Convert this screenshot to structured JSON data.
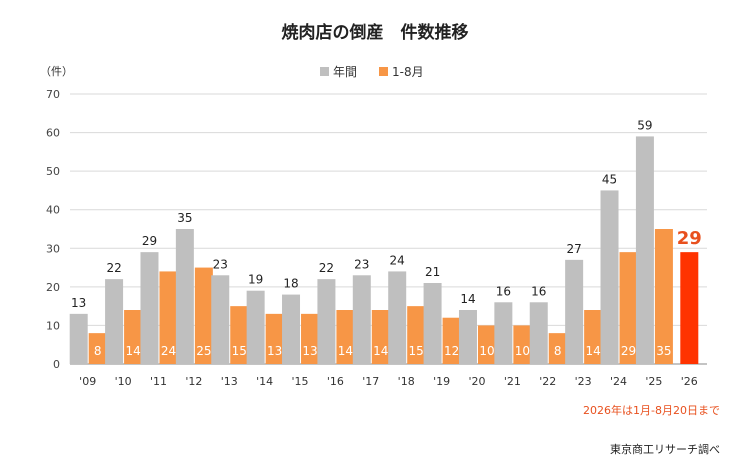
{
  "chart_data": {
    "type": "bar",
    "title": "焼肉店の倒産　件数推移",
    "y_unit_label": "（件）",
    "ylim": [
      0,
      70
    ],
    "yticks": [
      0,
      10,
      20,
      30,
      40,
      50,
      60,
      70
    ],
    "grid": true,
    "legend_position": "top-center",
    "categories": [
      "'09",
      "'10",
      "'11",
      "'12",
      "'13",
      "'14",
      "'15",
      "'16",
      "'17",
      "'18",
      "'19",
      "'20",
      "'21",
      "'22",
      "'23",
      "'24",
      "'25",
      "'26"
    ],
    "series": [
      {
        "name": "年間",
        "color": "#bfbfbf",
        "values": [
          13,
          22,
          29,
          35,
          23,
          19,
          18,
          22,
          23,
          24,
          21,
          14,
          16,
          16,
          27,
          45,
          59,
          null
        ]
      },
      {
        "name": "1-8月",
        "color": "#f79646",
        "values": [
          8,
          14,
          24,
          25,
          15,
          13,
          13,
          14,
          14,
          15,
          12,
          10,
          10,
          8,
          14,
          29,
          35,
          29
        ]
      }
    ],
    "highlight": {
      "category": "'26",
      "value": 29,
      "color": "#ff3300",
      "label_color": "#e8501e"
    },
    "note": "2026年は1月-8月20日まで",
    "note_color": "#e8501e",
    "source": "東京商工リサーチ調べ"
  }
}
